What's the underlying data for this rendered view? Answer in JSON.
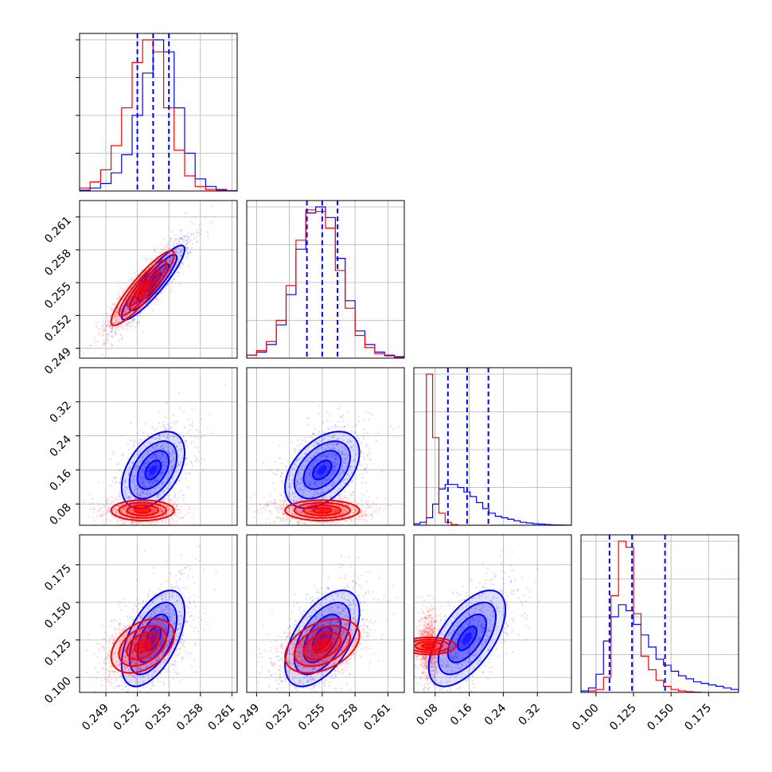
{
  "chart_data": {
    "type": "corner",
    "title": "",
    "parameters": [
      "",
      "",
      "",
      ""
    ],
    "colors": {
      "series_a": "#0000ff",
      "series_b": "#ff0000"
    },
    "grid": true,
    "axes": {
      "p0": {
        "range": [
          0.2465,
          0.2615
        ],
        "ticks": [
          0.249,
          0.252,
          0.255,
          0.258,
          0.261
        ],
        "tick_labels": [
          "0.249",
          "0.252",
          "0.255",
          "0.258",
          "0.261"
        ]
      },
      "p1": {
        "range": [
          0.2481,
          0.2625
        ],
        "ticks": [
          0.249,
          0.252,
          0.255,
          0.258,
          0.261
        ],
        "tick_labels": [
          "0.249",
          "0.252",
          "0.255",
          "0.258",
          "0.261"
        ]
      },
      "p2": {
        "range": [
          0.03,
          0.4
        ],
        "ticks": [
          0.08,
          0.16,
          0.24,
          0.32
        ],
        "tick_labels": [
          "0.08",
          "0.16",
          "0.24",
          "0.32"
        ]
      },
      "p3": {
        "range": [
          0.09,
          0.195
        ],
        "ticks": [
          0.1,
          0.125,
          0.15,
          0.175
        ],
        "tick_labels": [
          "0.100",
          "0.125",
          "0.150",
          "0.175"
        ]
      }
    },
    "diagonal": [
      {
        "param": "p0",
        "bins": [
          0.2465,
          0.2475,
          0.2485,
          0.2495,
          0.2505,
          0.2515,
          0.2525,
          0.2535,
          0.2545,
          0.2555,
          0.2565,
          0.2575,
          0.2585,
          0.2595,
          0.2605,
          0.2615
        ],
        "series": [
          {
            "name": "",
            "color": "#0000ff",
            "values": [
              0.005,
              0.02,
              0.05,
              0.12,
              0.24,
              0.5,
              0.78,
              1.0,
              0.92,
              0.55,
              0.25,
              0.08,
              0.03,
              0.01,
              0.003
            ]
          },
          {
            "name": "",
            "color": "#ff0000",
            "values": [
              0.02,
              0.06,
              0.14,
              0.3,
              0.55,
              0.85,
              1.0,
              0.92,
              0.55,
              0.27,
              0.1,
              0.03,
              0.01,
              0.005,
              0.002
            ]
          }
        ],
        "quantiles": [
          0.252,
          0.2535,
          0.255
        ]
      },
      {
        "param": "p1",
        "bins": [
          0.2481,
          0.249,
          0.2499,
          0.2508,
          0.2517,
          0.2526,
          0.2535,
          0.2544,
          0.2553,
          0.2562,
          0.2571,
          0.258,
          0.2589,
          0.2598,
          0.2607,
          0.2616,
          0.2625
        ],
        "series": [
          {
            "name": "",
            "color": "#0000ff",
            "values": [
              0.02,
              0.04,
              0.09,
              0.22,
              0.42,
              0.72,
              0.96,
              1.0,
              0.93,
              0.66,
              0.38,
              0.18,
              0.09,
              0.04,
              0.02,
              0.01
            ]
          },
          {
            "name": "",
            "color": "#ff0000",
            "values": [
              0.02,
              0.05,
              0.11,
              0.25,
              0.48,
              0.78,
              0.98,
              0.97,
              0.86,
              0.58,
              0.33,
              0.15,
              0.07,
              0.03,
              0.015,
              0.005
            ]
          }
        ],
        "quantiles": [
          0.2536,
          0.255,
          0.2564
        ]
      },
      {
        "param": "p2",
        "bins": [
          0.03,
          0.0447,
          0.0594,
          0.0741,
          0.0888,
          0.1035,
          0.1182,
          0.1329,
          0.1476,
          0.1623,
          0.177,
          0.1917,
          0.2064,
          0.2211,
          0.2358,
          0.2505,
          0.2652,
          0.2799,
          0.2946,
          0.3093,
          0.324,
          0.3387,
          0.3534,
          0.3681,
          0.3828,
          0.4
        ],
        "series": [
          {
            "name": "",
            "color": "#0000ff",
            "values": [
              0.01,
              0.02,
              0.05,
              0.14,
              0.24,
              0.27,
              0.27,
              0.25,
              0.22,
              0.19,
              0.15,
              0.11,
              0.08,
              0.06,
              0.05,
              0.04,
              0.03,
              0.02,
              0.015,
              0.01,
              0.008,
              0.005,
              0.003,
              0.002,
              0.001
            ]
          },
          {
            "name": "",
            "color": "#ff0000",
            "values": [
              0.0,
              0.0,
              1.0,
              0.58,
              0.08,
              0.02,
              0.005,
              0,
              0,
              0,
              0,
              0,
              0,
              0,
              0,
              0,
              0,
              0,
              0,
              0,
              0,
              0,
              0,
              0,
              0
            ]
          }
        ],
        "quantiles": [
          0.11,
          0.155,
          0.205
        ]
      },
      {
        "param": "p3",
        "bins": [
          0.09,
          0.095,
          0.1,
          0.105,
          0.11,
          0.115,
          0.12,
          0.125,
          0.13,
          0.135,
          0.14,
          0.145,
          0.15,
          0.155,
          0.16,
          0.165,
          0.17,
          0.175,
          0.18,
          0.185,
          0.19,
          0.195
        ],
        "series": [
          {
            "name": "",
            "color": "#0000ff",
            "values": [
              0.01,
              0.03,
              0.12,
              0.34,
              0.5,
              0.58,
              0.54,
              0.45,
              0.38,
              0.3,
              0.22,
              0.18,
              0.14,
              0.11,
              0.09,
              0.07,
              0.06,
              0.05,
              0.04,
              0.03,
              0.02
            ]
          },
          {
            "name": "",
            "color": "#ff0000",
            "values": [
              0.0,
              0.01,
              0.02,
              0.1,
              0.64,
              1.0,
              0.96,
              0.52,
              0.24,
              0.15,
              0.08,
              0.04,
              0.02,
              0.01,
              0.005,
              0.002,
              0,
              0,
              0,
              0,
              0
            ]
          }
        ],
        "quantiles": [
          0.109,
          0.124,
          0.146
        ]
      }
    ],
    "off_diagonal": [
      {
        "x": "p0",
        "y": "p1",
        "series": [
          {
            "name": "",
            "color": "#0000ff",
            "center": [
              0.2535,
              0.255
            ],
            "sd": [
              0.0015,
              0.0017
            ],
            "rho": 0.9
          },
          {
            "name": "",
            "color": "#ff0000",
            "center": [
              0.2525,
              0.2545
            ],
            "sd": [
              0.0015,
              0.0017
            ],
            "rho": 0.9
          }
        ]
      },
      {
        "x": "p0",
        "y": "p2",
        "series": [
          {
            "name": "",
            "color": "#0000ff",
            "center": [
              0.2535,
              0.16
            ],
            "sd": [
              0.0015,
              0.045
            ],
            "rho": 0.45
          },
          {
            "name": "",
            "color": "#ff0000",
            "center": [
              0.2525,
              0.065
            ],
            "sd": [
              0.0015,
              0.012
            ],
            "rho": 0.0
          }
        ]
      },
      {
        "x": "p1",
        "y": "p2",
        "series": [
          {
            "name": "",
            "color": "#0000ff",
            "center": [
              0.255,
              0.16
            ],
            "sd": [
              0.0017,
              0.045
            ],
            "rho": 0.45
          },
          {
            "name": "",
            "color": "#ff0000",
            "center": [
              0.255,
              0.065
            ],
            "sd": [
              0.0017,
              0.012
            ],
            "rho": 0.0
          }
        ]
      },
      {
        "x": "p0",
        "y": "p3",
        "series": [
          {
            "name": "",
            "color": "#0000ff",
            "center": [
              0.2535,
              0.126
            ],
            "sd": [
              0.0015,
              0.016
            ],
            "rho": 0.55
          },
          {
            "name": "",
            "color": "#ff0000",
            "center": [
              0.2525,
              0.121
            ],
            "sd": [
              0.0015,
              0.009
            ],
            "rho": 0.4
          }
        ]
      },
      {
        "x": "p1",
        "y": "p3",
        "series": [
          {
            "name": "",
            "color": "#0000ff",
            "center": [
              0.255,
              0.126
            ],
            "sd": [
              0.0017,
              0.016
            ],
            "rho": 0.55
          },
          {
            "name": "",
            "color": "#ff0000",
            "center": [
              0.255,
              0.121
            ],
            "sd": [
              0.0017,
              0.009
            ],
            "rho": 0.4
          }
        ]
      },
      {
        "x": "p2",
        "y": "p3",
        "series": [
          {
            "name": "",
            "color": "#0000ff",
            "center": [
              0.155,
              0.126
            ],
            "sd": [
              0.045,
              0.016
            ],
            "rho": 0.6
          },
          {
            "name": "",
            "color": "#ff0000",
            "center": [
              0.065,
              0.121
            ],
            "sd": [
              0.01,
              0.009
            ],
            "rho": 0.0
          }
        ]
      }
    ],
    "contour_levels_sigma": [
      0.5,
      1.0,
      1.5,
      2.0
    ]
  }
}
